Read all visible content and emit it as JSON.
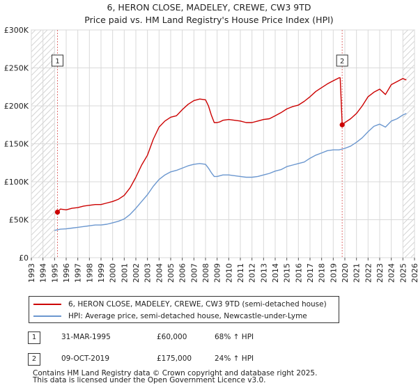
{
  "title": {
    "line1": "6, HERON CLOSE, MADELEY, CREWE, CW3 9TD",
    "line2": "Price paid vs. HM Land Registry's House Price Index (HPI)"
  },
  "chart_data": {
    "type": "line",
    "xlim": [
      1993,
      2026
    ],
    "ylim": [
      0,
      300000
    ],
    "y_ticks": [
      {
        "value": 0,
        "label": "£0"
      },
      {
        "value": 50000,
        "label": "£50K"
      },
      {
        "value": 100000,
        "label": "£100K"
      },
      {
        "value": 150000,
        "label": "£150K"
      },
      {
        "value": 200000,
        "label": "£200K"
      },
      {
        "value": 250000,
        "label": "£250K"
      },
      {
        "value": 300000,
        "label": "£300K"
      }
    ],
    "x_ticks": [
      "1993",
      "1994",
      "1995",
      "1996",
      "1997",
      "1998",
      "1999",
      "2000",
      "2001",
      "2002",
      "2003",
      "2004",
      "2005",
      "2006",
      "2007",
      "2008",
      "2009",
      "2010",
      "2011",
      "2012",
      "2013",
      "2014",
      "2015",
      "2016",
      "2017",
      "2018",
      "2019",
      "2020",
      "2021",
      "2022",
      "2023",
      "2024",
      "2025",
      "2026"
    ],
    "series": [
      {
        "name": "6, HERON CLOSE, MADELEY, CREWE, CW3 9TD (semi-detached house)",
        "color": "#cc0000",
        "x": [
          1995.25,
          1995.5,
          1996.0,
          1996.5,
          1997.0,
          1997.5,
          1998.0,
          1998.5,
          1999.0,
          1999.5,
          2000.0,
          2000.5,
          2001.0,
          2001.5,
          2002.0,
          2002.5,
          2003.0,
          2003.5,
          2004.0,
          2004.5,
          2005.0,
          2005.5,
          2006.0,
          2006.5,
          2007.0,
          2007.5,
          2008.0,
          2008.25,
          2008.5,
          2008.75,
          2009.0,
          2009.25,
          2009.5,
          2010.0,
          2010.5,
          2011.0,
          2011.5,
          2012.0,
          2012.5,
          2013.0,
          2013.5,
          2014.0,
          2014.5,
          2015.0,
          2015.5,
          2016.0,
          2016.5,
          2017.0,
          2017.5,
          2018.0,
          2018.5,
          2019.0,
          2019.5,
          2019.6,
          2019.77,
          2020.0,
          2020.5,
          2021.0,
          2021.5,
          2022.0,
          2022.5,
          2023.0,
          2023.5,
          2024.0,
          2024.5,
          2025.0,
          2025.3
        ],
        "y": [
          60000,
          64000,
          63000,
          65000,
          66000,
          68000,
          69000,
          70000,
          70000,
          72000,
          74000,
          77000,
          82000,
          92000,
          106000,
          122000,
          135000,
          156000,
          172000,
          180000,
          185000,
          187000,
          195000,
          202000,
          207000,
          209000,
          208000,
          200000,
          188000,
          178000,
          178000,
          179000,
          181000,
          182000,
          181000,
          180000,
          178000,
          178000,
          180000,
          182000,
          183000,
          187000,
          191000,
          196000,
          199000,
          201000,
          206000,
          212000,
          219000,
          224000,
          229000,
          233000,
          237000,
          237000,
          175000,
          178000,
          183000,
          190000,
          200000,
          212000,
          218000,
          222000,
          215000,
          228000,
          232000,
          236000,
          234000
        ]
      },
      {
        "name": "HPI: Average price, semi-detached house, Newcastle-under-Lyme",
        "color": "#6b97cf",
        "x": [
          1995.0,
          1995.5,
          1996.0,
          1996.5,
          1997.0,
          1997.5,
          1998.0,
          1998.5,
          1999.0,
          1999.5,
          2000.0,
          2000.5,
          2001.0,
          2001.5,
          2002.0,
          2002.5,
          2003.0,
          2003.5,
          2004.0,
          2004.5,
          2005.0,
          2005.5,
          2006.0,
          2006.5,
          2007.0,
          2007.5,
          2008.0,
          2008.25,
          2008.5,
          2008.75,
          2009.0,
          2009.25,
          2009.5,
          2010.0,
          2010.5,
          2011.0,
          2011.5,
          2012.0,
          2012.5,
          2013.0,
          2013.5,
          2014.0,
          2014.5,
          2015.0,
          2015.5,
          2016.0,
          2016.5,
          2017.0,
          2017.5,
          2018.0,
          2018.5,
          2019.0,
          2019.5,
          2020.0,
          2020.5,
          2021.0,
          2021.5,
          2022.0,
          2022.5,
          2023.0,
          2023.5,
          2024.0,
          2024.5,
          2025.0,
          2025.3
        ],
        "y": [
          36000,
          37500,
          38000,
          39000,
          40000,
          41000,
          42000,
          43000,
          43000,
          44000,
          46000,
          48000,
          51000,
          57000,
          65000,
          74000,
          83000,
          94000,
          103000,
          109000,
          113000,
          115000,
          118000,
          121000,
          123000,
          124000,
          123000,
          118000,
          112000,
          107000,
          107000,
          108000,
          109000,
          109000,
          108000,
          107000,
          106000,
          106000,
          107000,
          109000,
          111000,
          114000,
          116000,
          120000,
          122000,
          124000,
          126000,
          131000,
          135000,
          138000,
          141000,
          142000,
          142000,
          144000,
          147000,
          152000,
          158000,
          166000,
          173000,
          176000,
          172000,
          180000,
          183000,
          188000,
          190000
        ]
      }
    ],
    "annotations": [
      {
        "label": "1",
        "x": 1995.25,
        "y": 60000
      },
      {
        "label": "2",
        "x": 2019.77,
        "y": 175000
      }
    ],
    "hatch_regions": [
      [
        1993,
        1995.0
      ],
      [
        2025.0,
        2026
      ]
    ]
  },
  "legend": {
    "items": [
      {
        "label": "6, HERON CLOSE, MADELEY, CREWE, CW3 9TD (semi-detached house)",
        "color": "#cc0000"
      },
      {
        "label": "HPI: Average price, semi-detached house, Newcastle-under-Lyme",
        "color": "#6b97cf"
      }
    ]
  },
  "transactions": [
    {
      "label": "1",
      "date": "31-MAR-1995",
      "price": "£60,000",
      "hpi": "68% ↑ HPI"
    },
    {
      "label": "2",
      "date": "09-OCT-2019",
      "price": "£175,000",
      "hpi": "24% ↑ HPI"
    }
  ],
  "footer": {
    "line1": "Contains HM Land Registry data © Crown copyright and database right 2025.",
    "line2": "This data is licensed under the Open Government Licence v3.0."
  }
}
